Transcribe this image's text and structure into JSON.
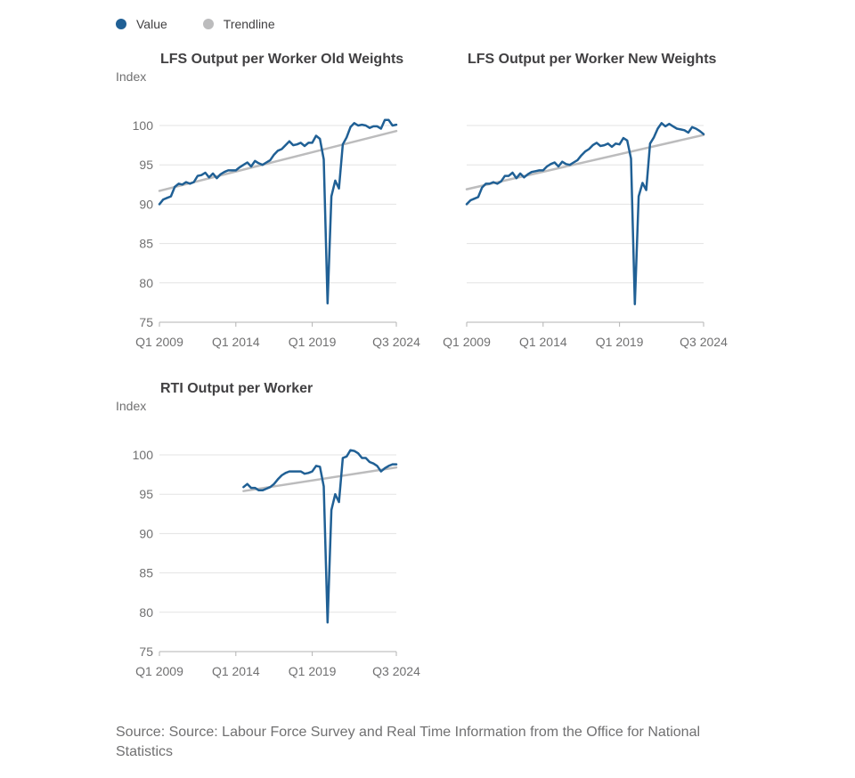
{
  "legend": {
    "items": [
      {
        "label": "Value",
        "color": "#206095"
      },
      {
        "label": "Trendline",
        "color": "#bcbcbd"
      }
    ]
  },
  "source": "Source: Source: Labour Force Survey and Real Time Information from the Office for National Statistics",
  "chart_data": [
    {
      "type": "line",
      "title": "LFS Output per Worker Old Weights",
      "ylabel": "Index",
      "xlabel": "",
      "ylim": [
        75,
        102
      ],
      "yticks": [
        75,
        80,
        85,
        90,
        95,
        100
      ],
      "xlim": [
        "Q1 2009",
        "Q3 2024"
      ],
      "xticks": [
        "Q1 2009",
        "Q1 2014",
        "Q1 2019",
        "Q3 2024"
      ],
      "grid": true,
      "legend": "top-left",
      "series": [
        {
          "name": "Value",
          "x": [
            "Q1 2009",
            "Q2 2009",
            "Q3 2009",
            "Q4 2009",
            "Q1 2010",
            "Q2 2010",
            "Q3 2010",
            "Q4 2010",
            "Q1 2011",
            "Q2 2011",
            "Q3 2011",
            "Q4 2011",
            "Q1 2012",
            "Q2 2012",
            "Q3 2012",
            "Q4 2012",
            "Q1 2013",
            "Q2 2013",
            "Q3 2013",
            "Q4 2013",
            "Q1 2014",
            "Q2 2014",
            "Q3 2014",
            "Q4 2014",
            "Q1 2015",
            "Q2 2015",
            "Q3 2015",
            "Q4 2015",
            "Q1 2016",
            "Q2 2016",
            "Q3 2016",
            "Q4 2016",
            "Q1 2017",
            "Q2 2017",
            "Q3 2017",
            "Q4 2017",
            "Q1 2018",
            "Q2 2018",
            "Q3 2018",
            "Q4 2018",
            "Q1 2019",
            "Q2 2019",
            "Q3 2019",
            "Q4 2019",
            "Q1 2020",
            "Q2 2020",
            "Q3 2020",
            "Q4 2020",
            "Q1 2021",
            "Q2 2021",
            "Q3 2021",
            "Q4 2021",
            "Q1 2022",
            "Q2 2022",
            "Q3 2022",
            "Q4 2022",
            "Q1 2023",
            "Q2 2023",
            "Q3 2023",
            "Q4 2023",
            "Q1 2024",
            "Q2 2024",
            "Q3 2024"
          ],
          "y": [
            90.0,
            90.6,
            90.8,
            91.0,
            92.2,
            92.6,
            92.5,
            92.8,
            92.6,
            92.8,
            93.6,
            93.7,
            94.0,
            93.4,
            93.9,
            93.3,
            93.8,
            94.1,
            94.3,
            94.3,
            94.3,
            94.7,
            95.0,
            95.3,
            94.8,
            95.5,
            95.2,
            95.0,
            95.3,
            95.6,
            96.3,
            96.8,
            97.0,
            97.5,
            98.0,
            97.5,
            97.6,
            97.8,
            97.4,
            97.8,
            97.8,
            98.7,
            98.3,
            95.7,
            77.4,
            91.0,
            93.0,
            92.0,
            97.6,
            98.5,
            99.8,
            100.3,
            100.0,
            100.1,
            100.0,
            99.7,
            99.9,
            99.9,
            99.6,
            100.7,
            100.7,
            100.0,
            100.1
          ]
        },
        {
          "name": "Trendline",
          "x": [
            "Q1 2009",
            "Q3 2024"
          ],
          "y": [
            91.7,
            99.3
          ]
        }
      ]
    },
    {
      "type": "line",
      "title": "LFS Output per Worker New Weights",
      "ylabel": "",
      "xlabel": "",
      "ylim": [
        75,
        102
      ],
      "yticks": [
        75,
        80,
        85,
        90,
        95,
        100
      ],
      "xlim": [
        "Q1 2009",
        "Q3 2024"
      ],
      "xticks": [
        "Q1 2009",
        "Q1 2014",
        "Q1 2019",
        "Q3 2024"
      ],
      "grid": true,
      "series": [
        {
          "name": "Value",
          "x": [
            "Q1 2009",
            "Q2 2009",
            "Q3 2009",
            "Q4 2009",
            "Q1 2010",
            "Q2 2010",
            "Q3 2010",
            "Q4 2010",
            "Q1 2011",
            "Q2 2011",
            "Q3 2011",
            "Q4 2011",
            "Q1 2012",
            "Q2 2012",
            "Q3 2012",
            "Q4 2012",
            "Q1 2013",
            "Q2 2013",
            "Q3 2013",
            "Q4 2013",
            "Q1 2014",
            "Q2 2014",
            "Q3 2014",
            "Q4 2014",
            "Q1 2015",
            "Q2 2015",
            "Q3 2015",
            "Q4 2015",
            "Q1 2016",
            "Q2 2016",
            "Q3 2016",
            "Q4 2016",
            "Q1 2017",
            "Q2 2017",
            "Q3 2017",
            "Q4 2017",
            "Q1 2018",
            "Q2 2018",
            "Q3 2018",
            "Q4 2018",
            "Q1 2019",
            "Q2 2019",
            "Q3 2019",
            "Q4 2019",
            "Q1 2020",
            "Q2 2020",
            "Q3 2020",
            "Q4 2020",
            "Q1 2021",
            "Q2 2021",
            "Q3 2021",
            "Q4 2021",
            "Q1 2022",
            "Q2 2022",
            "Q3 2022",
            "Q4 2022",
            "Q1 2023",
            "Q2 2023",
            "Q3 2023",
            "Q4 2023",
            "Q1 2024",
            "Q2 2024",
            "Q3 2024"
          ],
          "y": [
            90.0,
            90.5,
            90.7,
            90.9,
            92.1,
            92.6,
            92.6,
            92.8,
            92.6,
            92.9,
            93.6,
            93.6,
            94.0,
            93.3,
            93.9,
            93.4,
            93.8,
            94.1,
            94.2,
            94.3,
            94.3,
            94.8,
            95.1,
            95.3,
            94.8,
            95.4,
            95.1,
            95.0,
            95.3,
            95.6,
            96.2,
            96.7,
            97.0,
            97.5,
            97.8,
            97.4,
            97.5,
            97.7,
            97.3,
            97.7,
            97.6,
            98.4,
            98.1,
            95.8,
            77.3,
            91.0,
            92.7,
            91.8,
            97.7,
            98.5,
            99.6,
            100.3,
            99.9,
            100.2,
            99.9,
            99.6,
            99.5,
            99.4,
            99.1,
            99.8,
            99.6,
            99.3,
            98.9
          ]
        },
        {
          "name": "Trendline",
          "x": [
            "Q1 2009",
            "Q3 2024"
          ],
          "y": [
            91.9,
            98.8
          ]
        }
      ]
    },
    {
      "type": "line",
      "title": "RTI Output per Worker",
      "ylabel": "Index",
      "xlabel": "",
      "ylim": [
        75,
        102
      ],
      "yticks": [
        75,
        80,
        85,
        90,
        95,
        100
      ],
      "xlim": [
        "Q1 2009",
        "Q3 2024"
      ],
      "xticks": [
        "Q1 2009",
        "Q1 2014",
        "Q1 2019",
        "Q3 2024"
      ],
      "grid": true,
      "series": [
        {
          "name": "Value",
          "x": [
            "Q3 2014",
            "Q4 2014",
            "Q1 2015",
            "Q2 2015",
            "Q3 2015",
            "Q4 2015",
            "Q1 2016",
            "Q2 2016",
            "Q3 2016",
            "Q4 2016",
            "Q1 2017",
            "Q2 2017",
            "Q3 2017",
            "Q4 2017",
            "Q1 2018",
            "Q2 2018",
            "Q3 2018",
            "Q4 2018",
            "Q1 2019",
            "Q2 2019",
            "Q3 2019",
            "Q4 2019",
            "Q1 2020",
            "Q2 2020",
            "Q3 2020",
            "Q4 2020",
            "Q1 2021",
            "Q2 2021",
            "Q3 2021",
            "Q4 2021",
            "Q1 2022",
            "Q2 2022",
            "Q3 2022",
            "Q4 2022",
            "Q1 2023",
            "Q2 2023",
            "Q3 2023",
            "Q4 2023",
            "Q1 2024",
            "Q2 2024",
            "Q3 2024"
          ],
          "y": [
            95.9,
            96.3,
            95.8,
            95.8,
            95.5,
            95.5,
            95.7,
            95.9,
            96.3,
            96.9,
            97.4,
            97.7,
            97.9,
            97.9,
            97.9,
            97.9,
            97.6,
            97.7,
            97.9,
            98.6,
            98.5,
            96.0,
            78.7,
            93.0,
            95.0,
            94.0,
            99.6,
            99.8,
            100.6,
            100.5,
            100.2,
            99.6,
            99.6,
            99.1,
            98.9,
            98.6,
            97.9,
            98.3,
            98.6,
            98.8,
            98.8
          ]
        },
        {
          "name": "Trendline",
          "x": [
            "Q3 2014",
            "Q3 2024"
          ],
          "y": [
            95.4,
            98.4
          ]
        }
      ]
    }
  ]
}
